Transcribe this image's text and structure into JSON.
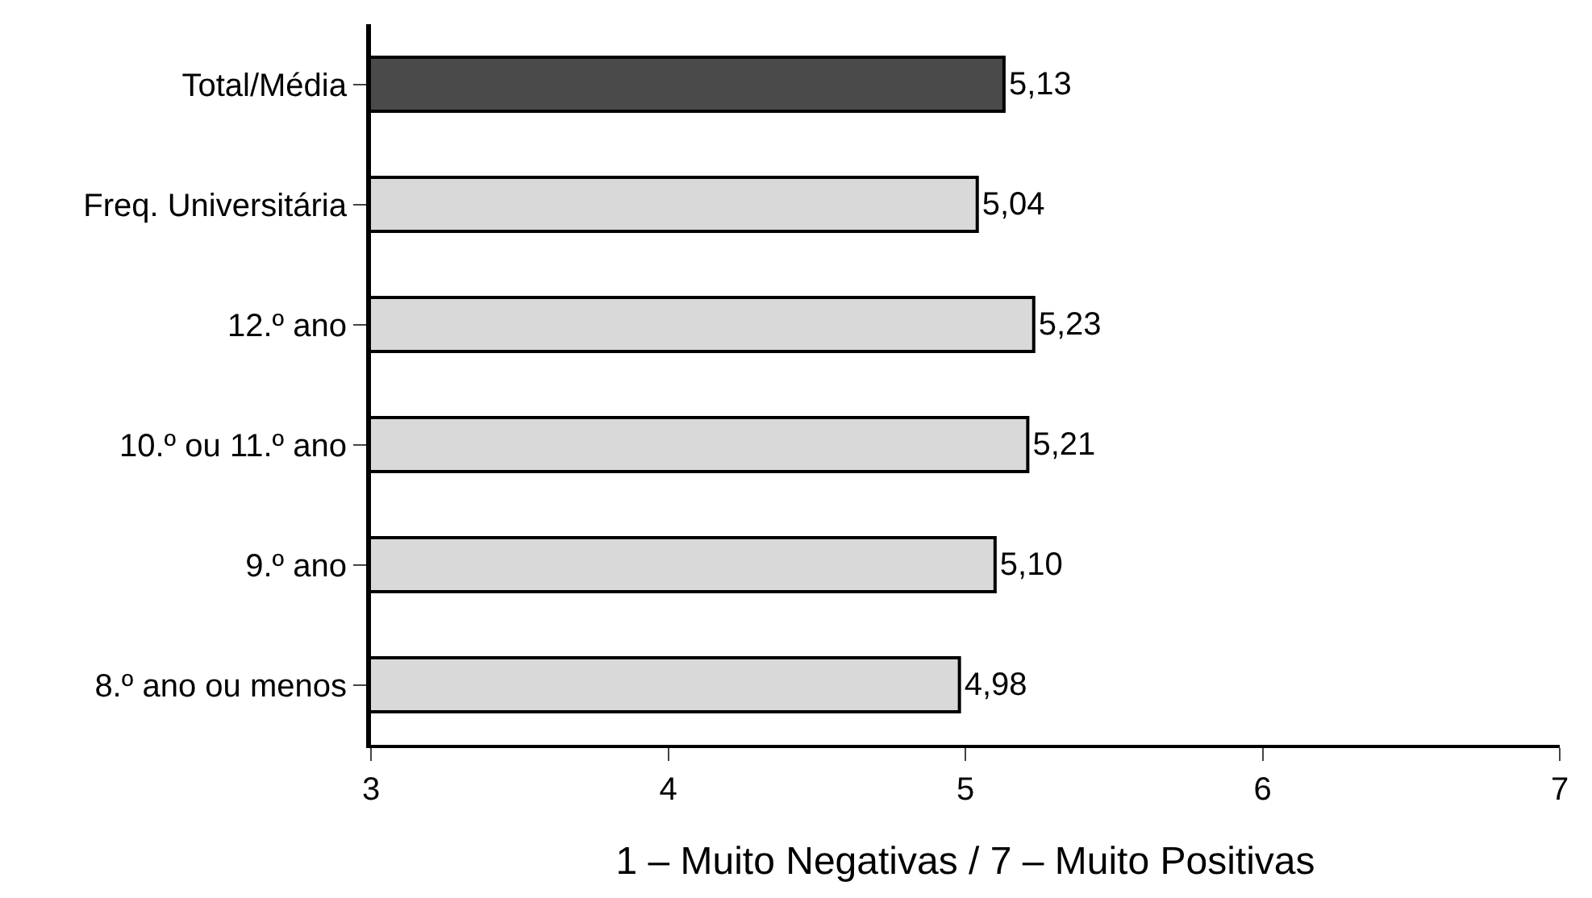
{
  "chart_data": {
    "type": "bar",
    "orientation": "horizontal",
    "xlabel": "1 – Muito Negativas / 7 – Muito Positivas",
    "categories": [
      "Total/Média",
      "Freq. Universitária",
      "12.º ano",
      "10.º ou 11.º ano",
      "9.º ano",
      "8.º ano ou menos"
    ],
    "values": [
      5.13,
      5.04,
      5.23,
      5.21,
      5.1,
      4.98
    ],
    "value_labels": [
      "5,13",
      "5,04",
      "5,23",
      "5,21",
      "5,10",
      "4,98"
    ],
    "colors": [
      "#4a4a4a",
      "#d9d9d9",
      "#d9d9d9",
      "#d9d9d9",
      "#d9d9d9",
      "#d9d9d9"
    ],
    "xlim": [
      3,
      7
    ],
    "xticks": [
      3,
      4,
      5,
      6,
      7
    ]
  }
}
